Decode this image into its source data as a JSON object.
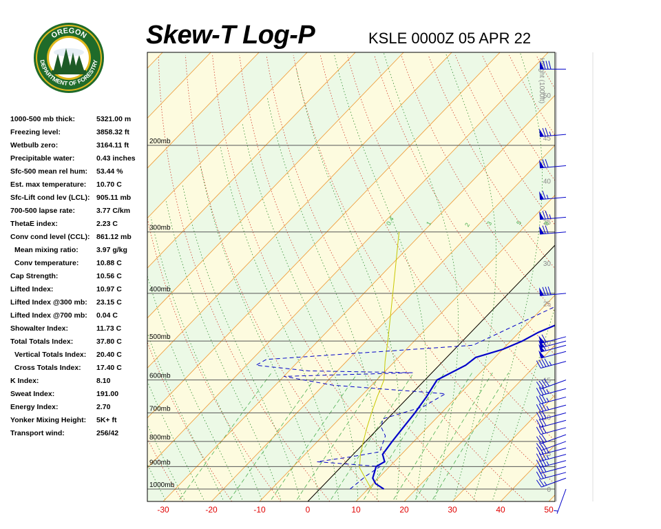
{
  "header": {
    "title": "Skew-T Log-P",
    "station": "KSLE 0000Z 05 APR 22"
  },
  "logo": {
    "top_text": "OREGON",
    "bottom_text": "DEPARTMENT OF FORESTRY",
    "colors": {
      "ring": "#1f6b2a",
      "gold": "#e0b81c",
      "tree": "#1d5a26",
      "sky": "#ffffff"
    }
  },
  "indices": [
    {
      "label": "1000-500 mb thick:",
      "value": "5321.00 m"
    },
    {
      "label": "Freezing level:",
      "value": "3858.32 ft"
    },
    {
      "label": "Wetbulb zero:",
      "value": "3164.11 ft"
    },
    {
      "label": "Precipitable water:",
      "value": "0.43 inches"
    },
    {
      "label": "Sfc-500 mean rel hum:",
      "value": "53.44 %"
    },
    {
      "label": "Est. max temperature:",
      "value": "10.70 C"
    },
    {
      "label": "Sfc-Lift cond lev (LCL):",
      "value": "905.11 mb"
    },
    {
      "label": "700-500 lapse rate:",
      "value": "3.77 C/km"
    },
    {
      "label": "ThetaE index:",
      "value": "2.23 C"
    },
    {
      "label": "Conv cond level (CCL):",
      "value": "861.12 mb"
    },
    {
      "label": "Mean mixing ratio:",
      "value": "3.97 g/kg",
      "indent": true
    },
    {
      "label": "Conv temperature:",
      "value": "10.88 C",
      "indent": true
    },
    {
      "label": "Cap Strength:",
      "value": "10.56 C"
    },
    {
      "label": "Lifted Index:",
      "value": "10.97 C"
    },
    {
      "label": "Lifted Index @300 mb:",
      "value": "23.15 C"
    },
    {
      "label": "Lifted Index @700 mb:",
      "value": "0.04 C"
    },
    {
      "label": "Showalter Index:",
      "value": "11.73 C"
    },
    {
      "label": "Total Totals Index:",
      "value": "37.80 C"
    },
    {
      "label": "Vertical Totals Index:",
      "value": "20.40 C",
      "indent": true
    },
    {
      "label": "Cross Totals Index:",
      "value": "17.40 C",
      "indent": true
    },
    {
      "label": "K Index:",
      "value": "8.10"
    },
    {
      "label": "Sweat Index:",
      "value": "191.00"
    },
    {
      "label": "Energy Index:",
      "value": "2.70"
    },
    {
      "label": "Yonker Mixing Height:",
      "value": "5K+ ft"
    },
    {
      "label": "Transport wind:",
      "value": "256/42"
    }
  ],
  "chart_data": {
    "type": "skew-t log-p",
    "x_ticks": [
      -30,
      -20,
      -10,
      0,
      10,
      20,
      30,
      40,
      50
    ],
    "x_unit": "C",
    "xlim": [
      -33,
      51
    ],
    "ylim_mb": [
      1050,
      100
    ],
    "pressure_levels": [
      1000,
      900,
      800,
      700,
      600,
      500,
      400,
      300,
      200
    ],
    "pressure_labels": [
      "1000mb",
      "900mb",
      "800mb",
      "700mb",
      "600mb",
      "500mb",
      "400mb",
      "300mb",
      "200mb"
    ],
    "height_axis_label": "Height (1000ft)",
    "height_ticks": [
      {
        "label": "0",
        "p": 1000
      },
      {
        "label": "5",
        "p": 846
      },
      {
        "label": "10",
        "p": 714
      },
      {
        "label": "15",
        "p": 600
      },
      {
        "label": "20",
        "p": 503
      },
      {
        "label": "25",
        "p": 419
      },
      {
        "label": "30",
        "p": 347
      },
      {
        "label": "35",
        "p": 286
      },
      {
        "label": "40",
        "p": 236
      },
      {
        "label": "45",
        "p": 193
      },
      {
        "label": "50",
        "p": 158
      }
    ],
    "mixing_ratio_labels": [
      "0.4",
      "1",
      "2",
      "3",
      "5",
      "8"
    ],
    "temperature_profile": [
      {
        "p": 1000,
        "t": 13.3
      },
      {
        "p": 975,
        "t": 10.5
      },
      {
        "p": 950,
        "t": 8.8
      },
      {
        "p": 900,
        "t": 7.2
      },
      {
        "p": 880,
        "t": 8.0
      },
      {
        "p": 850,
        "t": 6.1
      },
      {
        "p": 800,
        "t": 5.5
      },
      {
        "p": 750,
        "t": 5.0
      },
      {
        "p": 700,
        "t": 4.5
      },
      {
        "p": 650,
        "t": 3.7
      },
      {
        "p": 600,
        "t": 2.5
      },
      {
        "p": 560,
        "t": 5.5
      },
      {
        "p": 540,
        "t": 6.0
      },
      {
        "p": 520,
        "t": 10.0
      },
      {
        "p": 500,
        "t": 12.4
      },
      {
        "p": 480,
        "t": 14.0
      },
      {
        "p": 400,
        "t": 25.3
      },
      {
        "p": 300,
        "t": 31.5
      },
      {
        "p": 250,
        "t": 36.0
      },
      {
        "p": 230,
        "t": 41.5
      },
      {
        "p": 210,
        "t": 53.5
      },
      {
        "p": 170,
        "t": 71.0
      },
      {
        "p": 160,
        "t": 74.0
      },
      {
        "p": 140,
        "t": 80.0
      }
    ],
    "dewpoint_profile": [
      {
        "p": 1000,
        "t": 6.3
      },
      {
        "p": 940,
        "t": 7.0
      },
      {
        "p": 900,
        "t": 8.0
      },
      {
        "p": 890,
        "t": 1.0
      },
      {
        "p": 880,
        "t": -6.0
      },
      {
        "p": 860,
        "t": 0.0
      },
      {
        "p": 840,
        "t": 5.0
      },
      {
        "p": 780,
        "t": 3.0
      },
      {
        "p": 750,
        "t": 0.5
      },
      {
        "p": 720,
        "t": -1.0
      },
      {
        "p": 700,
        "t": 2.0
      },
      {
        "p": 680,
        "t": 5.0
      },
      {
        "p": 640,
        "t": 7.0
      },
      {
        "p": 615,
        "t": -18.0
      },
      {
        "p": 590,
        "t": -30.0
      },
      {
        "p": 580,
        "t": -4.0
      },
      {
        "p": 575,
        "t": -26.0
      },
      {
        "p": 560,
        "t": -38.0
      },
      {
        "p": 545,
        "t": -37.0
      },
      {
        "p": 510,
        "t": 3.0
      },
      {
        "p": 420,
        "t": 13.0
      },
      {
        "p": 380,
        "t": 10.0
      },
      {
        "p": 300,
        "t": 0.0
      },
      {
        "p": 260,
        "t": -3.0
      },
      {
        "p": 220,
        "t": -8.0
      },
      {
        "p": 200,
        "t": -16.0
      },
      {
        "p": 180,
        "t": -9.0
      },
      {
        "p": 150,
        "t": 5.0
      },
      {
        "p": 138,
        "t": 20.0
      }
    ],
    "parcel_profile": [
      {
        "p": 1000,
        "t": 10.7
      },
      {
        "p": 905,
        "t": 4.0
      },
      {
        "p": 850,
        "t": 1.5
      },
      {
        "p": 800,
        "t": -0.5
      },
      {
        "p": 750,
        "t": -2.5
      },
      {
        "p": 700,
        "t": -4.5
      },
      {
        "p": 650,
        "t": -6.5
      },
      {
        "p": 600,
        "t": -8.5
      },
      {
        "p": 550,
        "t": -12.0
      },
      {
        "p": 500,
        "t": -15.5
      },
      {
        "p": 400,
        "t": -24.0
      },
      {
        "p": 300,
        "t": -35.0
      }
    ],
    "wind_barbs": [
      {
        "p": 1000,
        "dir": 200,
        "speed": 5
      },
      {
        "p": 950,
        "dir": 250,
        "speed": 25
      },
      {
        "p": 925,
        "dir": 255,
        "speed": 25
      },
      {
        "p": 900,
        "dir": 255,
        "speed": 30
      },
      {
        "p": 875,
        "dir": 255,
        "speed": 35
      },
      {
        "p": 850,
        "dir": 255,
        "speed": 35
      },
      {
        "p": 825,
        "dir": 255,
        "speed": 35
      },
      {
        "p": 800,
        "dir": 250,
        "speed": 30
      },
      {
        "p": 775,
        "dir": 250,
        "speed": 30
      },
      {
        "p": 750,
        "dir": 255,
        "speed": 30
      },
      {
        "p": 725,
        "dir": 255,
        "speed": 30
      },
      {
        "p": 700,
        "dir": 255,
        "speed": 30
      },
      {
        "p": 675,
        "dir": 255,
        "speed": 35
      },
      {
        "p": 650,
        "dir": 255,
        "speed": 35
      },
      {
        "p": 625,
        "dir": 255,
        "speed": 35
      },
      {
        "p": 600,
        "dir": 250,
        "speed": 40
      },
      {
        "p": 550,
        "dir": 255,
        "speed": 45
      },
      {
        "p": 525,
        "dir": 255,
        "speed": 50
      },
      {
        "p": 510,
        "dir": 255,
        "speed": 55
      },
      {
        "p": 500,
        "dir": 255,
        "speed": 55
      },
      {
        "p": 490,
        "dir": 255,
        "speed": 60
      },
      {
        "p": 400,
        "dir": 265,
        "speed": 80
      },
      {
        "p": 300,
        "dir": 265,
        "speed": 70
      },
      {
        "p": 280,
        "dir": 265,
        "speed": 75
      },
      {
        "p": 255,
        "dir": 265,
        "speed": 65
      },
      {
        "p": 220,
        "dir": 265,
        "speed": 70
      },
      {
        "p": 190,
        "dir": 265,
        "speed": 75
      },
      {
        "p": 140,
        "dir": 270,
        "speed": 80
      }
    ],
    "colors": {
      "band_green": "#ecf9e6",
      "band_yellow": "#fdfbdf",
      "isobar": "#555555",
      "isotherm": "#f0a040",
      "dry_adiabat": "#d23a2a",
      "moist_adiabat": "#2a8a2a",
      "mixing_ratio": "#4caf50",
      "temperature": "#0000c8",
      "dewpoint": "#0000c8",
      "parcel": "#c8c800",
      "zero_isotherm": "#000000",
      "axis_label": "#e00000",
      "height_label": "#888888"
    }
  }
}
